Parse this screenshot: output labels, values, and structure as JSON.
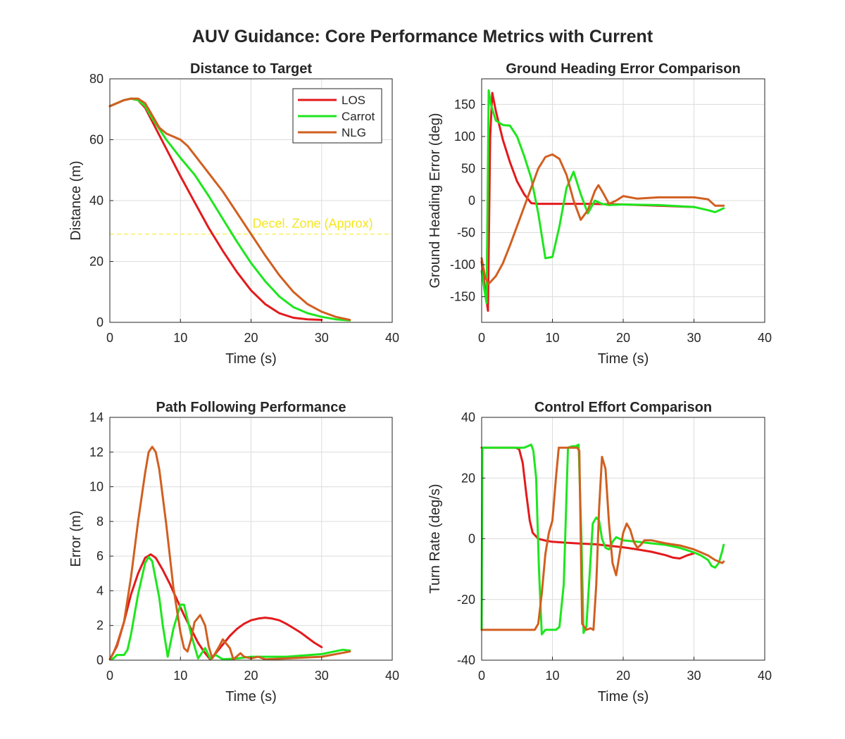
{
  "figure": {
    "title": "AUV Guidance: Core Performance Metrics with Current"
  },
  "colors": {
    "LOS": "#e31a1c",
    "Carrot": "#1ee61e",
    "NLG": "#d15f20",
    "annotation": "#f5e61e"
  },
  "chart_data": [
    {
      "type": "line",
      "title": "Distance to Target",
      "xlabel": "Time (s)",
      "ylabel": "Distance (m)",
      "xlim": [
        0,
        40
      ],
      "ylim": [
        0,
        80
      ],
      "xticks": [
        0,
        10,
        20,
        30,
        40
      ],
      "yticks": [
        0,
        20,
        40,
        60,
        80
      ],
      "grid": true,
      "legend": {
        "location": "top-right",
        "entries": [
          "LOS",
          "Carrot",
          "NLG"
        ]
      },
      "annotation": {
        "text": "Decel. Zone (Approx)",
        "y": 29,
        "x": 20.2
      },
      "series": [
        {
          "name": "LOS",
          "x": [
            0,
            1,
            2,
            3,
            4,
            5,
            6,
            8,
            10,
            12,
            14,
            16,
            18,
            20,
            22,
            24,
            26,
            28,
            30
          ],
          "y": [
            71,
            72,
            73,
            73.5,
            73,
            70.5,
            66,
            57,
            48,
            39.5,
            31,
            23.5,
            16.5,
            10.5,
            6,
            3,
            1.5,
            1,
            0.8
          ]
        },
        {
          "name": "Carrot",
          "x": [
            0,
            1,
            2,
            3,
            4,
            5,
            6,
            8,
            10,
            12,
            14,
            16,
            18,
            20,
            22,
            24,
            26,
            28,
            30,
            32,
            34
          ],
          "y": [
            71,
            72,
            73,
            73.5,
            73,
            71,
            67,
            60,
            54,
            48.5,
            41.5,
            34,
            26.5,
            19.5,
            13.5,
            8.5,
            5,
            3,
            1.8,
            1,
            0.6
          ]
        },
        {
          "name": "NLG",
          "x": [
            0,
            1,
            2,
            3,
            4,
            5,
            6,
            7,
            8,
            10,
            11,
            12,
            14,
            16,
            18,
            20,
            22,
            24,
            26,
            28,
            30,
            32,
            34
          ],
          "y": [
            71,
            72,
            73,
            73.5,
            73.5,
            72,
            68,
            64,
            62,
            60,
            58,
            55,
            49,
            43,
            36,
            29,
            22,
            15.5,
            10,
            6,
            3.5,
            1.8,
            0.8
          ]
        }
      ]
    },
    {
      "type": "line",
      "title": "Ground Heading Error Comparison",
      "xlabel": "Time (s)",
      "ylabel": "Ground Heading Error (deg)",
      "xlim": [
        0,
        40
      ],
      "ylim": [
        -190,
        190
      ],
      "xticks": [
        0,
        10,
        20,
        30,
        40
      ],
      "yticks": [
        -150,
        -100,
        -50,
        0,
        50,
        100,
        150
      ],
      "grid": true,
      "series": [
        {
          "name": "LOS",
          "x": [
            0,
            0.5,
            0.9,
            1.2,
            1.5,
            2,
            3,
            4,
            5,
            6,
            7,
            8,
            10,
            15,
            20,
            25,
            30
          ],
          "y": [
            -95,
            -140,
            -172,
            100,
            168,
            140,
            95,
            60,
            30,
            10,
            -4,
            -5,
            -5,
            -5,
            -6,
            -8,
            -10
          ]
        },
        {
          "name": "Carrot",
          "x": [
            0,
            0.4,
            0.7,
            1.0,
            1.3,
            2,
            3,
            4,
            5,
            6,
            7,
            8,
            9,
            10,
            11,
            12,
            13,
            14,
            15,
            16,
            17,
            18,
            20,
            25,
            30,
            32,
            33,
            34.2
          ],
          "y": [
            -110,
            -140,
            -160,
            172,
            150,
            125,
            118,
            117,
            100,
            70,
            35,
            -20,
            -90,
            -88,
            -40,
            20,
            45,
            10,
            -20,
            0,
            -5,
            -7,
            -6,
            -7,
            -10,
            -15,
            -18,
            -12
          ]
        },
        {
          "name": "NLG",
          "x": [
            0,
            0.5,
            1,
            2,
            3,
            4,
            5,
            6,
            7,
            8,
            9,
            10,
            11,
            12,
            13,
            14,
            15,
            16,
            16.5,
            17,
            18,
            19,
            20,
            22,
            25,
            30,
            32,
            33,
            34.2
          ],
          "y": [
            -90,
            -120,
            -130,
            -118,
            -98,
            -70,
            -40,
            -10,
            20,
            50,
            68,
            72,
            65,
            40,
            0,
            -30,
            -15,
            15,
            24,
            15,
            -5,
            0,
            7,
            3,
            5,
            5,
            2,
            -8,
            -8
          ]
        }
      ]
    },
    {
      "type": "line",
      "title": "Path Following Performance",
      "xlabel": "Time (s)",
      "ylabel": "Error (m)",
      "xlim": [
        0,
        40
      ],
      "ylim": [
        0,
        14
      ],
      "xticks": [
        0,
        10,
        20,
        30,
        40
      ],
      "yticks": [
        0,
        2,
        4,
        6,
        8,
        10,
        12,
        14
      ],
      "grid": true,
      "series": [
        {
          "name": "LOS",
          "x": [
            0,
            1,
            2,
            3,
            4,
            5,
            5.8,
            6.5,
            7.5,
            8.5,
            9.5,
            10.5,
            11.5,
            12.5,
            13.5,
            14.2,
            15,
            16,
            17,
            18,
            19,
            20,
            21,
            22,
            23,
            24,
            25,
            26,
            27,
            28,
            29,
            30
          ],
          "y": [
            0.05,
            0.8,
            2.2,
            3.8,
            5.0,
            5.9,
            6.1,
            5.9,
            5.2,
            4.4,
            3.5,
            2.6,
            1.8,
            1.0,
            0.4,
            0.05,
            0.4,
            0.9,
            1.4,
            1.8,
            2.1,
            2.3,
            2.4,
            2.45,
            2.4,
            2.3,
            2.1,
            1.85,
            1.6,
            1.3,
            1.0,
            0.75
          ]
        },
        {
          "name": "Carrot",
          "x": [
            0,
            0.5,
            1,
            2,
            2.5,
            3,
            4,
            5,
            5.5,
            6,
            7,
            7.5,
            8.2,
            9,
            10,
            10.5,
            11.5,
            12.5,
            13.5,
            14.2,
            15,
            16,
            18,
            20,
            25,
            30,
            33,
            34
          ],
          "y": [
            0.05,
            0.1,
            0.3,
            0.3,
            0.6,
            1.5,
            3.8,
            5.6,
            5.95,
            5.7,
            3.6,
            2.0,
            0.2,
            1.8,
            3.2,
            3.2,
            1.5,
            0.1,
            0.7,
            0.1,
            0.3,
            0.05,
            0.1,
            0.2,
            0.2,
            0.35,
            0.6,
            0.55
          ]
        },
        {
          "name": "NLG",
          "x": [
            0,
            0.5,
            1,
            2,
            3,
            4,
            5,
            5.5,
            6,
            6.5,
            7,
            8,
            9,
            10,
            10.5,
            11,
            11.5,
            12,
            12.8,
            13.5,
            14,
            14.5,
            15.5,
            16,
            17,
            17.5,
            18.5,
            19,
            20,
            21,
            22,
            25,
            30,
            34
          ],
          "y": [
            0.05,
            0.4,
            0.9,
            2.2,
            4.8,
            8.0,
            10.8,
            12.0,
            12.3,
            12.0,
            11.0,
            7.8,
            4.2,
            1.6,
            0.7,
            0.5,
            1.2,
            2.2,
            2.6,
            2.0,
            0.8,
            0.1,
            0.8,
            1.2,
            0.7,
            0.05,
            0.4,
            0.2,
            0.1,
            0.2,
            0.05,
            0.1,
            0.2,
            0.5
          ]
        }
      ]
    },
    {
      "type": "line",
      "title": "Control Effort Comparison",
      "xlabel": "Time (s)",
      "ylabel": "Turn Rate (deg/s)",
      "xlim": [
        0,
        40
      ],
      "ylim": [
        -40,
        40
      ],
      "xticks": [
        0,
        10,
        20,
        30,
        40
      ],
      "yticks": [
        -40,
        -20,
        0,
        20,
        40
      ],
      "grid": true,
      "series": [
        {
          "name": "LOS",
          "x": [
            0,
            4.8,
            5.3,
            5.8,
            6.3,
            6.8,
            7.2,
            8,
            9,
            10,
            12,
            14,
            16,
            18,
            20,
            22,
            24,
            26,
            27,
            28,
            29,
            30
          ],
          "y": [
            30,
            30,
            29.5,
            25,
            15,
            6,
            2,
            0,
            -0.6,
            -1,
            -1.3,
            -1.6,
            -1.8,
            -2.3,
            -2.8,
            -3.5,
            -4.3,
            -5.4,
            -6.2,
            -6.5,
            -5.5,
            -4.8
          ]
        },
        {
          "name": "Carrot",
          "x": [
            0,
            0.1,
            6,
            6.5,
            7,
            7.3,
            7.7,
            8.1,
            8.5,
            9,
            10.5,
            11,
            11.6,
            12.2,
            12.8,
            13.3,
            13.7,
            14.1,
            14.4,
            14.8,
            15.3,
            15.7,
            16.2,
            16.6,
            17,
            17.5,
            18,
            18.5,
            19,
            19.5,
            20,
            22,
            24,
            26,
            28,
            30,
            31,
            32,
            32.5,
            33,
            33.5,
            34,
            34.2
          ],
          "y": [
            -30,
            30,
            30,
            30.5,
            31,
            29,
            20,
            -10,
            -31.5,
            -30,
            -30,
            -29,
            -15,
            30,
            30.5,
            30.5,
            31,
            0,
            -31,
            -29,
            -10,
            5,
            7,
            6,
            0,
            -3,
            -3.5,
            -1,
            0.5,
            0,
            -0.5,
            -1,
            -1.5,
            -2,
            -3,
            -4.5,
            -5.5,
            -7,
            -9,
            -9.5,
            -8,
            -4,
            -2
          ]
        },
        {
          "name": "NLG",
          "x": [
            0,
            0.1,
            5,
            7.5,
            8,
            8.5,
            9,
            9.5,
            10,
            10.5,
            10.9,
            11.3,
            12,
            13.5,
            13.8,
            14.2,
            14.8,
            15.4,
            15.8,
            16.2,
            16.6,
            17,
            17.5,
            18,
            18.5,
            19,
            19.5,
            20,
            20.5,
            21,
            21.5,
            22,
            22.5,
            23,
            24,
            26,
            28,
            30,
            32,
            33,
            34,
            34.2
          ],
          "y": [
            -30,
            -30,
            -30,
            -30,
            -28,
            -18,
            -5,
            2,
            6,
            20,
            30,
            30,
            30,
            30,
            29,
            -28,
            -30,
            -29.5,
            -30,
            -15,
            10,
            27,
            23,
            5,
            -8,
            -12,
            -5,
            2,
            5,
            3,
            -1,
            -3,
            -2,
            -0.5,
            -0.5,
            -1.5,
            -2.2,
            -3.5,
            -5.5,
            -7,
            -8,
            -7.5
          ]
        }
      ]
    }
  ]
}
